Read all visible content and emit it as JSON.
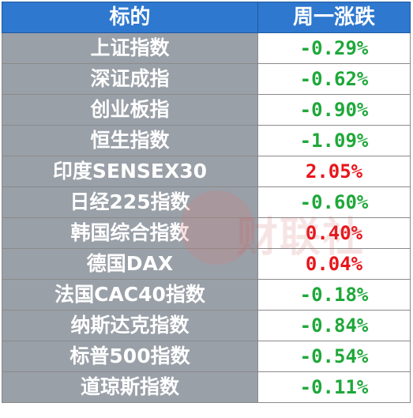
{
  "header": {
    "col_name": "标的",
    "col_change": "周一涨跌"
  },
  "rows": [
    {
      "name": "上证指数",
      "change": "-0.29%",
      "direction": "down"
    },
    {
      "name": "深证成指",
      "change": "-0.62%",
      "direction": "down"
    },
    {
      "name": "创业板指",
      "change": "-0.90%",
      "direction": "down"
    },
    {
      "name": "恒生指数",
      "change": "-1.09%",
      "direction": "down"
    },
    {
      "name": "印度SENSEX30",
      "change": "2.05%",
      "direction": "up"
    },
    {
      "name": "日经225指数",
      "change": "-0.60%",
      "direction": "down"
    },
    {
      "name": "韩国综合指数",
      "change": "0.40%",
      "direction": "up"
    },
    {
      "name": "德国DAX",
      "change": "0.04%",
      "direction": "up"
    },
    {
      "name": "法国CAC40指数",
      "change": "-0.18%",
      "direction": "down"
    },
    {
      "name": "纳斯达克指数",
      "change": "-0.84%",
      "direction": "down"
    },
    {
      "name": "标普500指数",
      "change": "-0.54%",
      "direction": "down"
    },
    {
      "name": "道琼斯指数",
      "change": "-0.11%",
      "direction": "down"
    }
  ],
  "watermark": "财联社",
  "colors": {
    "header_bg": "#2e78cf",
    "name_cell_bg": "#9aa0a8",
    "down": "#1fa83a",
    "up": "#e8151b"
  }
}
